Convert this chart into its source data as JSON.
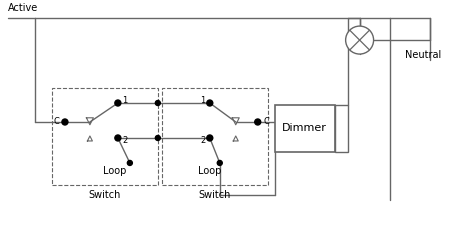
{
  "bg_color": "#ffffff",
  "line_color": "#666666",
  "dot_color": "#000000",
  "active_label": "Active",
  "neutral_label": "Neutral",
  "dimmer_label": "Dimmer",
  "loop_label": "Loop",
  "switch_label": "Switch",
  "c_label": "C",
  "label1": "1",
  "label2": "2",
  "fig_width": 4.5,
  "fig_height": 2.27,
  "dpi": 100
}
